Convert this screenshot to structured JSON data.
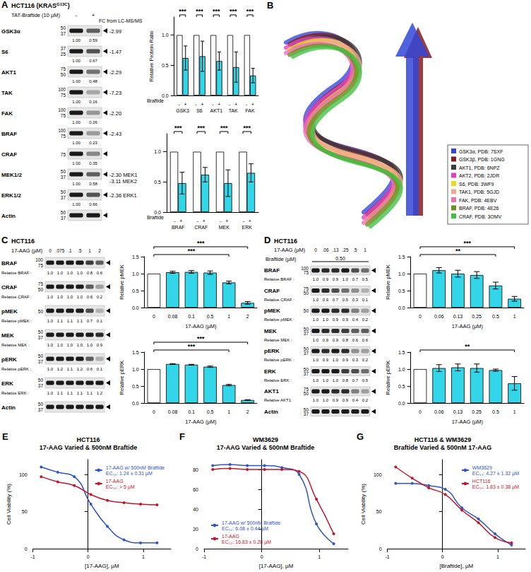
{
  "blots": [
    {
      "letter": "A",
      "title_parts": [
        "HCT116 (KRAS",
        "G13C",
        ")"
      ],
      "treatment": {
        "label": "TAT-Braftide (10 µM)",
        "lanes": [
          "-",
          "+"
        ]
      },
      "fc_header": "FC from LC-MS/MS",
      "rows": [
        {
          "label": "GSK3α",
          "markers": [
            50,
            37
          ],
          "ratios": [
            "1.00",
            "0.59"
          ],
          "fc": [
            "-2.99"
          ]
        },
        {
          "label": "S6",
          "markers": [
            37,
            25
          ],
          "ratios": [
            "1.00",
            "0.67"
          ],
          "fc": [
            "-1.47"
          ]
        },
        {
          "label": "AKT1",
          "markers": [
            75,
            50
          ],
          "ratios": [
            "1.00",
            "0.48"
          ],
          "fc": [
            "-2.29"
          ]
        },
        {
          "label": "TAK",
          "markers": [
            100,
            75
          ],
          "ratios": [
            "1.00",
            "0.16"
          ],
          "fc": [
            "-7.23"
          ]
        },
        {
          "label": "FAK",
          "markers": [
            100,
            75
          ],
          "ratios": [
            "1.00",
            "0.26"
          ],
          "fc": [
            "-2.20"
          ]
        },
        {
          "label": "BRAF",
          "markers": [
            100,
            75
          ],
          "ratios": [
            "1.00",
            "0.23"
          ],
          "fc": [
            "-2.43"
          ]
        },
        {
          "label": "CRAF",
          "markers": [
            75
          ],
          "ratios": [
            "1.00",
            "0.35"
          ]
        },
        {
          "label": "MEK1/2",
          "markers": [
            50,
            37
          ],
          "ratios": [
            "1.00",
            "0.58"
          ],
          "fc": [
            "-2.30 MEK1",
            "-3.11 MEK2"
          ]
        },
        {
          "label": "ERK1/2",
          "markers": [
            50,
            37
          ],
          "ratios": [
            "1.00",
            "0.66"
          ],
          "fc": [
            "-2.36 ERK1"
          ]
        },
        {
          "label": "Actin",
          "markers": [
            50,
            37
          ]
        }
      ]
    },
    {
      "letter": "C",
      "title_parts": [
        "HCT116"
      ],
      "treatment": {
        "label": "17-AAG (µM)",
        "lanes": [
          "0",
          ".075",
          ".1",
          ".5",
          "1",
          "2"
        ]
      },
      "rows": [
        {
          "label": "BRAF",
          "markers": [
            100,
            75
          ],
          "ratio_label": "Relative BRAF :",
          "ratios": [
            "1.0",
            "1.0",
            "1.0",
            "1.0",
            "0.8",
            "0.6"
          ]
        },
        {
          "label": "CRAF",
          "markers": [
            75,
            50
          ],
          "ratio_label": "Relative CRAF :",
          "ratios": [
            "1.0",
            "1.0",
            "1.0",
            "1.0",
            "0.6",
            "0.2"
          ]
        },
        {
          "label": "pMEK",
          "markers": [
            50
          ],
          "ratio_label": "Relative pMEK :",
          "ratios": [
            "1.0",
            "1.1",
            "1.1",
            "1.1",
            "0.7",
            "0.1"
          ]
        },
        {
          "label": "MEK",
          "markers": [
            50,
            37
          ],
          "ratio_label": "Relative MEK :",
          "ratios": [
            "1.0",
            "1.0",
            "1.0",
            "1.0",
            "1.0",
            "0.9"
          ]
        },
        {
          "label": "pERK",
          "markers": [
            50,
            37
          ],
          "ratio_label": "Relative pERK :",
          "ratios": [
            "1.0",
            "1.2",
            "1.1",
            "1.2",
            "0.6",
            "0.1"
          ]
        },
        {
          "label": "ERK",
          "markers": [
            50,
            37
          ],
          "ratio_label": "Relative ERK :",
          "ratios": [
            "1.0",
            "1.1",
            "1.1",
            "1.1",
            "1.1",
            "1.2"
          ]
        },
        {
          "label": "Actin",
          "markers": [
            50,
            37
          ]
        }
      ]
    },
    {
      "letter": "D",
      "title_parts": [
        "HCT116"
      ],
      "treatment": {
        "label": "17-AAG (µM)",
        "lanes": [
          "0",
          ".06",
          ".13",
          ".25",
          ".5",
          "1"
        ]
      },
      "treatment2": {
        "label": "Braftide (µM)",
        "value": "0.50",
        "first_lane": 0,
        "last_lane": 5
      },
      "rows": [
        {
          "label": "BRAF",
          "markers": [
            100,
            75
          ],
          "ratio_label": "Relative BRAF :",
          "ratios": [
            "1.0",
            "0.9",
            "0.9",
            "1.0",
            "0.7",
            "0.5"
          ]
        },
        {
          "label": "CRAF",
          "markers": [
            75,
            50
          ],
          "ratio_label": "Relative CRAF :",
          "ratios": [
            "1.0",
            "0.9",
            "0.7",
            "0.5",
            "0.3",
            "0.1"
          ]
        },
        {
          "label": "pMEK",
          "markers": [
            50
          ],
          "ratio_label": "Relative pMEK :",
          "ratios": [
            "1.0",
            "1.0",
            "0.9",
            "0.9",
            "0.4",
            "0.2"
          ]
        },
        {
          "label": "MEK",
          "markers": [
            50,
            37
          ],
          "ratio_label": "Relative MEK :",
          "ratios": [
            "1.0",
            "0.9",
            "0.9",
            "0.8",
            "0.6",
            "0.6"
          ]
        },
        {
          "label": "pERK",
          "markers": [
            50,
            37
          ],
          "ratio_label": "Relative pERK :",
          "ratios": [
            "1.0",
            "0.9",
            "1.0",
            "0.9",
            "0.3",
            "0.2"
          ]
        },
        {
          "label": "ERK",
          "markers": [
            50,
            37
          ],
          "ratio_label": "Relative ERK :",
          "ratios": [
            "1.0",
            "1.0",
            "1.0",
            "0.8",
            "0.7",
            "0.5"
          ]
        },
        {
          "label": "AKT1",
          "markers": [
            75,
            50
          ],
          "ratio_label": "Relative AKT1:",
          "ratios": [
            "1.0",
            "1.0",
            "0.9",
            "0.9",
            "0.4",
            "0.2"
          ]
        },
        {
          "label": "Actin",
          "markers": [
            50,
            37
          ]
        }
      ]
    }
  ],
  "structure": {
    "letter": "B",
    "legend": [
      {
        "label": "GSK3α, PDB: 7SXF",
        "color": "#3347d8"
      },
      {
        "label": "GSK3β, PDB: 1GNG",
        "color": "#8b1a1a"
      },
      {
        "label": "AKT1, PDB: 6NPZ",
        "color": "#3a3a3a"
      },
      {
        "label": "AKT2, PDB: 2JDR",
        "color": "#e040c0"
      },
      {
        "label": "S6, PDB: 3WF9",
        "color": "#e6dc1e"
      },
      {
        "label": "TAK1, PDB: 5GJD",
        "color": "#f0a890"
      },
      {
        "label": "FAK, PDB: 4EBV",
        "color": "#f070b0"
      },
      {
        "label": "BRAF, PDB: 4E26",
        "color": "#6b8e23"
      },
      {
        "label": "CRAF, PDB: 3OMV",
        "color": "#40c040"
      }
    ]
  },
  "chart_data": [
    {
      "type": "bar",
      "ylabel": "Relative Protein Ratio",
      "xlabel": "Braftide",
      "categories": [
        "GSK3",
        "S6",
        "AKT1",
        "TAK",
        "FAK"
      ],
      "series": [
        {
          "name": "-",
          "color": "#ffffff",
          "values": [
            1,
            1,
            1,
            1,
            1
          ],
          "errors": [
            0,
            0,
            0,
            0,
            0
          ]
        },
        {
          "name": "+",
          "color": "#33d6e8",
          "values": [
            0.62,
            0.65,
            0.57,
            0.47,
            0.33
          ],
          "errors": [
            0.2,
            0.25,
            0.15,
            0.25,
            0.12
          ]
        }
      ],
      "significance": [
        "***",
        "***",
        "***",
        "***",
        "***"
      ],
      "ylim": [
        0,
        1.3
      ],
      "yticks": [
        {
          "value": 0,
          "label": "0.0"
        },
        {
          "value": 0.5,
          "label": "0.5"
        },
        {
          "value": 1,
          "label": "1.0"
        }
      ],
      "grid": false
    },
    {
      "type": "bar",
      "xlabel": "Braftide",
      "categories": [
        "BRAF",
        "CRAF",
        "MEK",
        "ERK"
      ],
      "series": [
        {
          "name": "-",
          "color": "#ffffff",
          "values": [
            1,
            1,
            1,
            1
          ],
          "errors": [
            0,
            0,
            0,
            0
          ]
        },
        {
          "name": "+",
          "color": "#33d6e8",
          "values": [
            0.48,
            0.62,
            0.48,
            0.65
          ],
          "errors": [
            0.18,
            0.12,
            0.22,
            0.15
          ]
        }
      ],
      "significance": [
        "***",
        "***",
        "***",
        "***"
      ],
      "ylim": [
        0,
        1.3
      ],
      "yticks": [
        {
          "value": 0,
          "label": "0.0"
        },
        {
          "value": 0.5,
          "label": "0.5"
        },
        {
          "value": 1,
          "label": "1.0"
        }
      ],
      "grid": false
    },
    {
      "type": "bar",
      "ylabel": "Relative pMEK",
      "xlabel": "17-AAG (µM)",
      "categories": [
        "0",
        "0.08",
        "0.1",
        "0.5",
        "1",
        "2"
      ],
      "series": [
        {
          "colors": [
            "#ffffff",
            "#33d6e8",
            "#33d6e8",
            "#33d6e8",
            "#33d6e8",
            "#33d6e8"
          ],
          "values": [
            1,
            1.04,
            1.05,
            1.03,
            0.74,
            0.14
          ],
          "errors": [
            0,
            0.03,
            0.04,
            0.05,
            0.04,
            0.04
          ]
        }
      ],
      "significance": [
        {
          "from": "0",
          "to": "1",
          "label": "***"
        },
        {
          "from": "0",
          "to": "2",
          "label": "***"
        }
      ],
      "ylim": [
        0,
        1.5
      ],
      "yticks": [
        {
          "value": 0,
          "label": "0.0"
        },
        {
          "value": 0.5,
          "label": "0.5"
        },
        {
          "value": 1,
          "label": "1.0"
        },
        {
          "value": 1.5,
          "label": "1.5"
        }
      ],
      "grid": false
    },
    {
      "type": "bar",
      "ylabel": "Relative pERK",
      "xlabel": "17-AAG (µM)",
      "categories": [
        "0",
        "0.08",
        "0.1",
        "0.5",
        "1",
        "2"
      ],
      "series": [
        {
          "colors": [
            "#ffffff",
            "#33d6e8",
            "#33d6e8",
            "#33d6e8",
            "#33d6e8",
            "#33d6e8"
          ],
          "values": [
            1,
            1.15,
            1.13,
            1.07,
            0.53,
            0.09
          ],
          "errors": [
            0,
            0.01,
            0.01,
            0.02,
            0.02,
            0.01
          ]
        }
      ],
      "significance": [
        {
          "from": "0",
          "to": "1",
          "label": "***"
        },
        {
          "from": "0",
          "to": "2",
          "label": "***"
        }
      ],
      "ylim": [
        0,
        1.5
      ],
      "yticks": [
        {
          "value": 0,
          "label": "0.0"
        },
        {
          "value": 0.5,
          "label": "0.5"
        },
        {
          "value": 1,
          "label": "1.0"
        },
        {
          "value": 1.5,
          "label": "1.5"
        }
      ],
      "grid": false
    },
    {
      "type": "bar",
      "ylabel": "Relative pMEK",
      "xlabel": "17-AAG (µM)",
      "categories": [
        "0",
        "0.06",
        "0.13",
        "0.25",
        "0.5",
        "1"
      ],
      "series": [
        {
          "colors": [
            "#ffffff",
            "#33d6e8",
            "#33d6e8",
            "#33d6e8",
            "#33d6e8",
            "#33d6e8"
          ],
          "values": [
            1,
            1.1,
            1.0,
            0.96,
            0.65,
            0.26
          ],
          "errors": [
            0,
            0.08,
            0.1,
            0.1,
            0.1,
            0.07
          ]
        }
      ],
      "significance": [
        {
          "from": "0",
          "to": "0.5",
          "label": "**"
        },
        {
          "from": "0",
          "to": "1",
          "label": "***"
        }
      ],
      "ylim": [
        0,
        1.5
      ],
      "yticks": [
        {
          "value": 0,
          "label": "0.0"
        },
        {
          "value": 0.5,
          "label": "0.5"
        },
        {
          "value": 1,
          "label": "1.0"
        },
        {
          "value": 1.5,
          "label": "1.5"
        }
      ],
      "grid": false
    },
    {
      "type": "bar",
      "ylabel": "Relative pERK",
      "xlabel": "17-AAG (µM)",
      "categories": [
        "0",
        "0.06",
        "0.13",
        "0.25",
        "0.5",
        "1"
      ],
      "series": [
        {
          "colors": [
            "#ffffff",
            "#33d6e8",
            "#33d6e8",
            "#33d6e8",
            "#33d6e8",
            "#33d6e8"
          ],
          "values": [
            1,
            1.03,
            1.05,
            1.03,
            0.97,
            0.58
          ],
          "errors": [
            0,
            0.1,
            0.1,
            0.12,
            0.03,
            0.2
          ]
        }
      ],
      "significance": [
        {
          "from": "0",
          "to": "1",
          "label": "**"
        }
      ],
      "ylim": [
        0,
        1.5
      ],
      "yticks": [
        {
          "value": 0,
          "label": "0.0"
        },
        {
          "value": 0.5,
          "label": "0.5"
        },
        {
          "value": 1,
          "label": "1.0"
        },
        {
          "value": 1.5,
          "label": "1.5"
        }
      ],
      "grid": false
    },
    {
      "type": "line",
      "letter": "E",
      "title": "HCT116",
      "subtitle": "17-AAG Varied & 500nM Braftide",
      "xlabel": "[17-AAG], µM",
      "ylabel": "Cell Viability (%)",
      "x": [
        -0.85,
        -0.55,
        -0.25,
        0.05,
        0.35,
        0.65,
        0.95,
        1.25
      ],
      "series": [
        {
          "name": "17-AAG w/ 500nM Braftide",
          "color": "#2f55c8",
          "values": [
            110,
            103,
            97,
            60,
            30,
            12,
            8,
            8
          ],
          "ec50": "EC₅₀: 1.24 ± 0.31 µM"
        },
        {
          "name": "17-AAG",
          "color": "#c0182c",
          "values": [
            97,
            90,
            85,
            73,
            65,
            62,
            60,
            59
          ],
          "ec50": "EC₅₀: > 5 µM"
        }
      ],
      "xlim": [
        -1,
        1.5
      ],
      "xticks": [
        -1,
        0,
        1
      ],
      "ylim": [
        0,
        120
      ],
      "yticks": [
        0,
        50,
        100
      ],
      "legend": "top-right",
      "marker": "circle",
      "grid": false
    },
    {
      "type": "line",
      "letter": "F",
      "title": "WM3629",
      "subtitle": "17-AAG Varied & 500nM Braftide",
      "xlabel": "[17-AAG], µM",
      "x": [
        -0.85,
        -0.55,
        -0.25,
        0.05,
        0.35,
        0.65,
        0.95,
        1.25
      ],
      "series": [
        {
          "name": "17-AAG w/ 500nM Braftide",
          "color": "#2f55c8",
          "values": [
            84,
            85,
            84,
            84,
            82,
            75,
            25,
            5
          ],
          "ec50": "EC₅₀: 6.08 ± 0.44 µM"
        },
        {
          "name": "17-AAG",
          "color": "#c0182c",
          "values": [
            80,
            81,
            80,
            80,
            80,
            78,
            50,
            15
          ],
          "ec50": "EC₅₀: 16.83 ± 0.28 µM"
        }
      ],
      "xlim": [
        -1,
        1.5
      ],
      "xticks": [
        -1,
        0,
        1
      ],
      "ylim": [
        0,
        90
      ],
      "yticks": [
        0,
        20,
        40,
        60,
        80
      ],
      "legend": "bottom-left",
      "marker": "circle",
      "grid": false
    },
    {
      "type": "line",
      "letter": "G",
      "title": "HCT116 & WM3629",
      "subtitle": "Braftide Varied & 500nM 17-AAG",
      "xlabel": "[Braftide], µM",
      "ylabel": "Cell Viability (%)",
      "x": [
        -0.85,
        -0.55,
        -0.25,
        0.05,
        0.35,
        0.65,
        0.95,
        1.25
      ],
      "series": [
        {
          "name": "WM3629",
          "color": "#2f55c8",
          "values": [
            88,
            88,
            85,
            80,
            55,
            40,
            20,
            5
          ],
          "ec50": "EC₅₀: 4.27 ± 1.32 µM"
        },
        {
          "name": "HCT116",
          "color": "#c0182c",
          "values": [
            110,
            95,
            82,
            73,
            52,
            35,
            15,
            8
          ],
          "ec50": "EC₅₀: 1.83 ± 0.38 µM"
        }
      ],
      "xlim": [
        -1,
        1.5
      ],
      "xticks": [
        -1,
        0,
        1
      ],
      "ylim": [
        0,
        120
      ],
      "yticks": [
        0,
        50,
        100
      ],
      "legend": "top-right",
      "marker": "circle",
      "grid": false
    }
  ]
}
